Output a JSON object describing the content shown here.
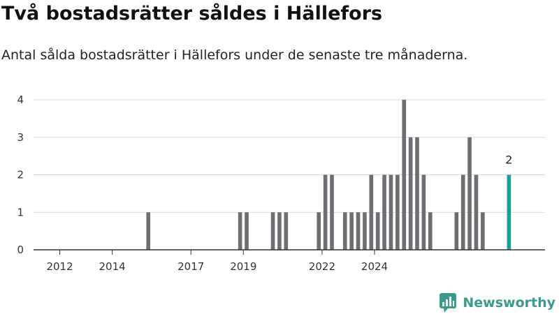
{
  "title": "Två bostadsrätter såldes i Hällefors",
  "subtitle": "Antal sålda bostadsrätter i Hällefors under de senaste tre månaderna.",
  "brand": {
    "name": "Newsworthy",
    "color": "#3a9a8d",
    "icon": "newsworthy-logo-icon"
  },
  "colors": {
    "bar": "#6e6e73",
    "highlight": "#1a9e8f",
    "grid": "#d9d9d9",
    "axis": "#333333"
  },
  "chart_data": {
    "type": "bar",
    "x_axis": "date",
    "ylim": [
      0,
      4
    ],
    "y_ticks": [
      0,
      1,
      2,
      3,
      4
    ],
    "x_ticks": [
      {
        "date": "2012-01",
        "label": "2012"
      },
      {
        "date": "2014-01",
        "label": "2014"
      },
      {
        "date": "2017-01",
        "label": "2017"
      },
      {
        "date": "2019-01",
        "label": "2019"
      },
      {
        "date": "2022-01",
        "label": "2022"
      },
      {
        "date": "2024-01",
        "label": "2024"
      }
    ],
    "grid": true,
    "legend": "none",
    "bar_period_months": 3,
    "series": [
      {
        "values": [
          {
            "x": "2015-04",
            "y": 1
          },
          {
            "x": "2018-10",
            "y": 1
          },
          {
            "x": "2019-01",
            "y": 1
          },
          {
            "x": "2020-01",
            "y": 1
          },
          {
            "x": "2020-04",
            "y": 1
          },
          {
            "x": "2020-07",
            "y": 1
          },
          {
            "x": "2021-10",
            "y": 1
          },
          {
            "x": "2022-01",
            "y": 2
          },
          {
            "x": "2022-04",
            "y": 2
          },
          {
            "x": "2022-10",
            "y": 1
          },
          {
            "x": "2023-01",
            "y": 1
          },
          {
            "x": "2023-04",
            "y": 1
          },
          {
            "x": "2023-07",
            "y": 1
          },
          {
            "x": "2023-10",
            "y": 2
          },
          {
            "x": "2024-01",
            "y": 1
          },
          {
            "x": "2024-04",
            "y": 2
          },
          {
            "x": "2024-07",
            "y": 2
          },
          {
            "x": "2024-10",
            "y": 2
          },
          {
            "x": "2025-01",
            "y": 4
          },
          {
            "x": "2025-04",
            "y": 3
          },
          {
            "x": "2025-07",
            "y": 3
          },
          {
            "x": "2025-10",
            "y": 2
          },
          {
            "x": "2026-01",
            "y": 1
          },
          {
            "x": "2027-01",
            "y": 1
          },
          {
            "x": "2027-04",
            "y": 2
          },
          {
            "x": "2027-07",
            "y": 3
          },
          {
            "x": "2027-10",
            "y": 2
          },
          {
            "x": "2028-01",
            "y": 1
          },
          {
            "x": "2029-01",
            "y": 2,
            "highlight": true,
            "label": "2"
          }
        ]
      }
    ]
  }
}
